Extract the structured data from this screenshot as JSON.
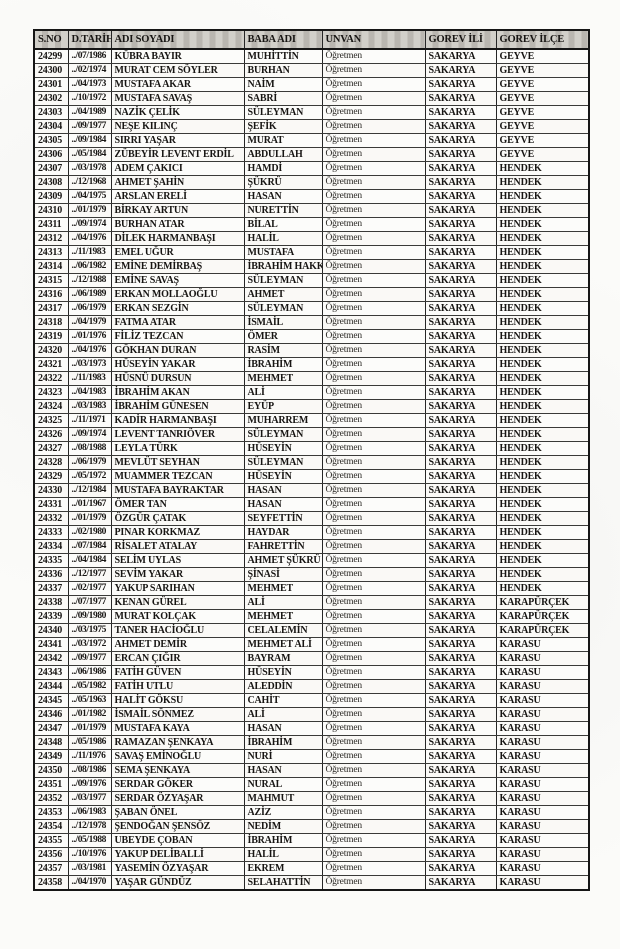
{
  "colors": {
    "page_bg": "#fbfbf9",
    "header_bg": "#c7c4bd",
    "border": "#262626",
    "text": "#171513"
  },
  "table": {
    "headers": [
      "S.NO",
      "D.TARİHİ",
      "ADI SOYADI",
      "BABA ADI",
      "UNVAN",
      "GOREV İLİ",
      "GOREV İLÇE"
    ],
    "rows": [
      [
        "24299",
        "../07/1986",
        "KÜBRA BAYIR",
        "MUHİTTİN",
        "Öğretmen",
        "SAKARYA",
        "GEYVE"
      ],
      [
        "24300",
        "../02/1974",
        "MURAT CEM SÖYLER",
        "BURHAN",
        "Öğretmen",
        "SAKARYA",
        "GEYVE"
      ],
      [
        "24301",
        "../04/1973",
        "MUSTAFA AKAR",
        "NAİM",
        "Öğretmen",
        "SAKARYA",
        "GEYVE"
      ],
      [
        "24302",
        "../10/1972",
        "MUSTAFA SAVAŞ",
        "SABRİ",
        "Öğretmen",
        "SAKARYA",
        "GEYVE"
      ],
      [
        "24303",
        "../04/1989",
        "NAZİK ÇELİK",
        "SÜLEYMAN",
        "Öğretmen",
        "SAKARYA",
        "GEYVE"
      ],
      [
        "24304",
        "../09/1977",
        "NEŞE KILINÇ",
        "ŞEFİK",
        "Öğretmen",
        "SAKARYA",
        "GEYVE"
      ],
      [
        "24305",
        "../09/1984",
        "SIRRI YAŞAR",
        "MURAT",
        "Öğretmen",
        "SAKARYA",
        "GEYVE"
      ],
      [
        "24306",
        "../05/1984",
        "ZÜBEYİR LEVENT ERDİL",
        "ABDULLAH",
        "Öğretmen",
        "SAKARYA",
        "GEYVE"
      ],
      [
        "24307",
        "../03/1978",
        "ADEM ÇAKICI",
        "HAMDİ",
        "Öğretmen",
        "SAKARYA",
        "HENDEK"
      ],
      [
        "24308",
        "../12/1968",
        "AHMET ŞAHİN",
        "ŞÜKRÜ",
        "Öğretmen",
        "SAKARYA",
        "HENDEK"
      ],
      [
        "24309",
        "../04/1975",
        "ARSLAN ERELİ",
        "HASAN",
        "Öğretmen",
        "SAKARYA",
        "HENDEK"
      ],
      [
        "24310",
        "../01/1979",
        "BİRKAY ARTUN",
        "NURETTİN",
        "Öğretmen",
        "SAKARYA",
        "HENDEK"
      ],
      [
        "24311",
        "../09/1974",
        "BURHAN ATAR",
        "BİLAL",
        "Öğretmen",
        "SAKARYA",
        "HENDEK"
      ],
      [
        "24312",
        "../04/1976",
        "DİLEK HARMANBAŞI",
        "HALİL",
        "Öğretmen",
        "SAKARYA",
        "HENDEK"
      ],
      [
        "24313",
        "../11/1983",
        "EMEL UĞUR",
        "MUSTAFA",
        "Öğretmen",
        "SAKARYA",
        "HENDEK"
      ],
      [
        "24314",
        "../06/1982",
        "EMİNE DEMİRBAŞ",
        "İBRAHİM HAKKI",
        "Öğretmen",
        "SAKARYA",
        "HENDEK"
      ],
      [
        "24315",
        "../12/1988",
        "EMİNE SAVAŞ",
        "SÜLEYMAN",
        "Öğretmen",
        "SAKARYA",
        "HENDEK"
      ],
      [
        "24316",
        "../06/1989",
        "ERKAN MOLLAOĞLU",
        "AHMET",
        "Öğretmen",
        "SAKARYA",
        "HENDEK"
      ],
      [
        "24317",
        "../06/1979",
        "ERKAN SEZGİN",
        "SÜLEYMAN",
        "Öğretmen",
        "SAKARYA",
        "HENDEK"
      ],
      [
        "24318",
        "../04/1979",
        "FATMA ATAR",
        "İSMAİL",
        "Öğretmen",
        "SAKARYA",
        "HENDEK"
      ],
      [
        "24319",
        "../01/1976",
        "FİLİZ TEZCAN",
        "ÖMER",
        "Öğretmen",
        "SAKARYA",
        "HENDEK"
      ],
      [
        "24320",
        "../04/1976",
        "GÖKHAN DURAN",
        "RASİM",
        "Öğretmen",
        "SAKARYA",
        "HENDEK"
      ],
      [
        "24321",
        "../03/1973",
        "HÜSEYİN YAKAR",
        "İBRAHİM",
        "Öğretmen",
        "SAKARYA",
        "HENDEK"
      ],
      [
        "24322",
        "../11/1983",
        "HÜSNÜ DURSUN",
        "MEHMET",
        "Öğretmen",
        "SAKARYA",
        "HENDEK"
      ],
      [
        "24323",
        "../04/1983",
        "İBRAHİM AKAN",
        "ALİ",
        "Öğretmen",
        "SAKARYA",
        "HENDEK"
      ],
      [
        "24324",
        "../03/1983",
        "İBRAHİM GÜNESEN",
        "EYÜP",
        "Öğretmen",
        "SAKARYA",
        "HENDEK"
      ],
      [
        "24325",
        "../11/1971",
        "KADİR HARMANBAŞI",
        "MUHARREM",
        "Öğretmen",
        "SAKARYA",
        "HENDEK"
      ],
      [
        "24326",
        "../09/1974",
        "LEVENT TANRIÖVER",
        "SÜLEYMAN",
        "Öğretmen",
        "SAKARYA",
        "HENDEK"
      ],
      [
        "24327",
        "../08/1988",
        "LEYLA TÜRK",
        "HÜSEYİN",
        "Öğretmen",
        "SAKARYA",
        "HENDEK"
      ],
      [
        "24328",
        "../06/1979",
        "MEVLÜT SEYHAN",
        "SÜLEYMAN",
        "Öğretmen",
        "SAKARYA",
        "HENDEK"
      ],
      [
        "24329",
        "../05/1972",
        "MUAMMER TEZCAN",
        "HÜSEYİN",
        "Öğretmen",
        "SAKARYA",
        "HENDEK"
      ],
      [
        "24330",
        "../12/1984",
        "MUSTAFA BAYRAKTAR",
        "HASAN",
        "Öğretmen",
        "SAKARYA",
        "HENDEK"
      ],
      [
        "24331",
        "../01/1967",
        "ÖMER TAN",
        "HASAN",
        "Öğretmen",
        "SAKARYA",
        "HENDEK"
      ],
      [
        "24332",
        "../01/1979",
        "ÖZGÜR ÇATAK",
        "SEYFETTİN",
        "Öğretmen",
        "SAKARYA",
        "HENDEK"
      ],
      [
        "24333",
        "../02/1980",
        "PINAR KORKMAZ",
        "HAYDAR",
        "Öğretmen",
        "SAKARYA",
        "HENDEK"
      ],
      [
        "24334",
        "../07/1984",
        "RİSALET ATALAY",
        "FAHRETTİN",
        "Öğretmen",
        "SAKARYA",
        "HENDEK"
      ],
      [
        "24335",
        "../04/1984",
        "SELİM UYLAS",
        "AHMET ŞÜKRÜ",
        "Öğretmen",
        "SAKARYA",
        "HENDEK"
      ],
      [
        "24336",
        "../12/1977",
        "SEVİM YAKAR",
        "ŞİNASİ",
        "Öğretmen",
        "SAKARYA",
        "HENDEK"
      ],
      [
        "24337",
        "../02/1977",
        "YAKUP SARIHAN",
        "MEHMET",
        "Öğretmen",
        "SAKARYA",
        "HENDEK"
      ],
      [
        "24338",
        "../07/1977",
        "KENAN GÜREL",
        "ALİ",
        "Öğretmen",
        "SAKARYA",
        "KARAPÜRÇEK"
      ],
      [
        "24339",
        "../09/1980",
        "MURAT KOLÇAK",
        "MEHMET",
        "Öğretmen",
        "SAKARYA",
        "KARAPÜRÇEK"
      ],
      [
        "24340",
        "../03/1975",
        "TANER HACİOĞLU",
        "CELALEMİN",
        "Öğretmen",
        "SAKARYA",
        "KARAPÜRÇEK"
      ],
      [
        "24341",
        "../03/1972",
        "AHMET DEMİR",
        "MEHMET ALİ",
        "Öğretmen",
        "SAKARYA",
        "KARASU"
      ],
      [
        "24342",
        "../09/1977",
        "ERCAN ÇIĞIR",
        "BAYRAM",
        "Öğretmen",
        "SAKARYA",
        "KARASU"
      ],
      [
        "24343",
        "../06/1986",
        "FATİH GÜVEN",
        "HÜSEYİN",
        "Öğretmen",
        "SAKARYA",
        "KARASU"
      ],
      [
        "24344",
        "../05/1982",
        "FATİH UTLU",
        "ALEDDİN",
        "Öğretmen",
        "SAKARYA",
        "KARASU"
      ],
      [
        "24345",
        "../05/1963",
        "HALİT GÖKSU",
        "CAHİT",
        "Öğretmen",
        "SAKARYA",
        "KARASU"
      ],
      [
        "24346",
        "../01/1982",
        "İSMAİL SÖNMEZ",
        "ALİ",
        "Öğretmen",
        "SAKARYA",
        "KARASU"
      ],
      [
        "24347",
        "../01/1979",
        "MUSTAFA KAYA",
        "HASAN",
        "Öğretmen",
        "SAKARYA",
        "KARASU"
      ],
      [
        "24348",
        "../05/1986",
        "RAMAZAN ŞENKAYA",
        "İBRAHİM",
        "Öğretmen",
        "SAKARYA",
        "KARASU"
      ],
      [
        "24349",
        "../11/1976",
        "SAVAŞ EMİNOĞLU",
        "NURİ",
        "Öğretmen",
        "SAKARYA",
        "KARASU"
      ],
      [
        "24350",
        "../08/1986",
        "SEMA ŞENKAYA",
        "HASAN",
        "Öğretmen",
        "SAKARYA",
        "KARASU"
      ],
      [
        "24351",
        "../09/1976",
        "SERDAR GÖKER",
        "NURAL",
        "Öğretmen",
        "SAKARYA",
        "KARASU"
      ],
      [
        "24352",
        "../03/1977",
        "SERDAR ÖZYAŞAR",
        "MAHMUT",
        "Öğretmen",
        "SAKARYA",
        "KARASU"
      ],
      [
        "24353",
        "../06/1983",
        "ŞABAN ÖNEL",
        "AZİZ",
        "Öğretmen",
        "SAKARYA",
        "KARASU"
      ],
      [
        "24354",
        "../12/1978",
        "ŞENDOĞAN ŞENSÖZ",
        "NEDİM",
        "Öğretmen",
        "SAKARYA",
        "KARASU"
      ],
      [
        "24355",
        "../05/1988",
        "UBEYDE ÇOBAN",
        "İBRAHİM",
        "Öğretmen",
        "SAKARYA",
        "KARASU"
      ],
      [
        "24356",
        "../10/1976",
        "YAKUP DELİBALLİ",
        "HALİL",
        "Öğretmen",
        "SAKARYA",
        "KARASU"
      ],
      [
        "24357",
        "../03/1981",
        "YASEMİN ÖZYAŞAR",
        "EKREM",
        "Öğretmen",
        "SAKARYA",
        "KARASU"
      ],
      [
        "24358",
        "../04/1970",
        "YAŞAR GÜNDÜZ",
        "SELAHATTİN",
        "Öğretmen",
        "SAKARYA",
        "KARASU"
      ]
    ]
  }
}
